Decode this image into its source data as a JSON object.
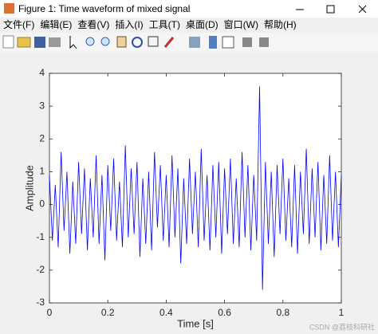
{
  "window": {
    "title": "Figure 1: Time waveform of mixed signal",
    "menu": [
      "文件(F)",
      "编辑(E)",
      "查看(V)",
      "插入(I)",
      "工具(T)",
      "桌面(D)",
      "窗口(W)",
      "帮助(H)"
    ]
  },
  "chart_data": {
    "type": "line",
    "xlabel": "Time [s]",
    "ylabel": "Amplitude",
    "xlim": [
      0,
      1
    ],
    "xticks": [
      0,
      0.2,
      0.4,
      0.6,
      0.8,
      1
    ],
    "ylim": [
      -3,
      4
    ],
    "yticks": [
      -3,
      -2,
      -1,
      0,
      1,
      2,
      3,
      4
    ],
    "grid": false,
    "x": [
      0,
      0.01,
      0.02,
      0.03,
      0.04,
      0.05,
      0.06,
      0.07,
      0.08,
      0.09,
      0.1,
      0.11,
      0.12,
      0.13,
      0.14,
      0.15,
      0.16,
      0.17,
      0.18,
      0.19,
      0.2,
      0.21,
      0.22,
      0.23,
      0.24,
      0.25,
      0.26,
      0.27,
      0.28,
      0.29,
      0.3,
      0.31,
      0.32,
      0.33,
      0.34,
      0.35,
      0.36,
      0.37,
      0.38,
      0.39,
      0.4,
      0.41,
      0.42,
      0.43,
      0.44,
      0.45,
      0.46,
      0.47,
      0.48,
      0.49,
      0.5,
      0.51,
      0.52,
      0.53,
      0.54,
      0.55,
      0.56,
      0.57,
      0.58,
      0.59,
      0.6,
      0.61,
      0.62,
      0.63,
      0.64,
      0.65,
      0.66,
      0.67,
      0.68,
      0.69,
      0.7,
      0.71,
      0.72,
      0.73,
      0.74,
      0.75,
      0.76,
      0.77,
      0.78,
      0.79,
      0.8,
      0.81,
      0.82,
      0.83,
      0.84,
      0.85,
      0.86,
      0.87,
      0.88,
      0.89,
      0.9,
      0.91,
      0.92,
      0.93,
      0.94,
      0.95,
      0.96,
      0.97,
      0.98,
      0.99,
      1
    ],
    "series": [
      {
        "color": "#0000ff",
        "values": [
          0.9,
          -1.1,
          0.6,
          -1.3,
          1.6,
          -0.8,
          1.0,
          -1.5,
          0.7,
          -1.2,
          1.3,
          -0.9,
          1.1,
          -1.4,
          0.8,
          -1.0,
          1.5,
          -1.2,
          0.9,
          -1.7,
          1.2,
          -0.8,
          1.4,
          -1.1,
          0.7,
          -1.3,
          1.8,
          -1.0,
          1.1,
          -0.9,
          1.3,
          -1.6,
          0.8,
          -1.2,
          1.0,
          -1.4,
          1.6,
          -0.7,
          1.2,
          -1.1,
          0.9,
          -1.3,
          1.5,
          -1.0,
          1.1,
          -1.8,
          0.8,
          -1.2,
          1.4,
          -0.9,
          1.0,
          -1.3,
          1.7,
          -1.1,
          0.9,
          -1.4,
          1.2,
          -1.0,
          1.3,
          -1.5,
          1.1,
          -0.9,
          1.4,
          -1.2,
          0.8,
          -1.3,
          1.6,
          -1.0,
          1.2,
          -1.4,
          0.9,
          -1.1,
          3.6,
          -2.6,
          1.3,
          -1.2,
          1.0,
          -1.6,
          1.2,
          -0.9,
          1.4,
          -1.1,
          0.8,
          -1.3,
          1.2,
          -1.5,
          1.0,
          -0.9,
          1.7,
          -1.2,
          1.1,
          -1.0,
          1.3,
          -1.4,
          0.9,
          -1.2,
          1.5,
          -1.1,
          1.0,
          -1.3,
          0.9
        ]
      }
    ]
  },
  "watermark": "CSDN @荔枝科研社"
}
